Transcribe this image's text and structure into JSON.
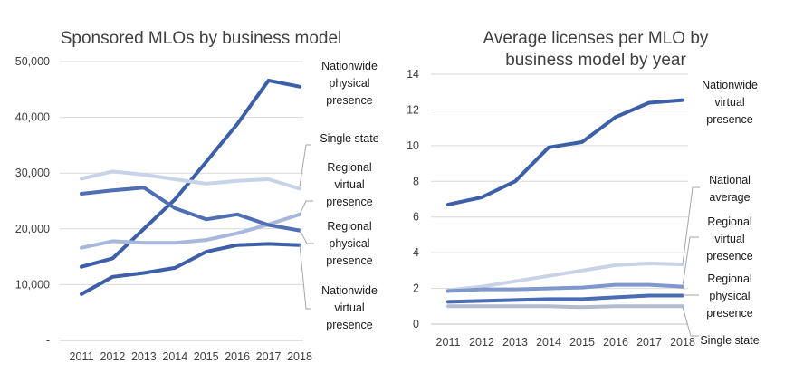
{
  "chart_data": [
    {
      "type": "line",
      "title": "Sponsored MLOs by business model",
      "x": [
        "2011",
        "2012",
        "2013",
        "2014",
        "2015",
        "2016",
        "2017",
        "2018"
      ],
      "ylim": [
        0,
        50000
      ],
      "yticks": [
        "-",
        "10,000",
        "20,000",
        "30,000",
        "40,000",
        "50,000"
      ],
      "grid": true,
      "series": [
        {
          "name": "Nationwide physical presence",
          "color": "#3b5fa8",
          "values": [
            13200,
            14700,
            20000,
            25300,
            32000,
            38800,
            46600,
            45500
          ]
        },
        {
          "name": "Single state",
          "color": "#c9d3e8",
          "values": [
            29000,
            30300,
            29700,
            28900,
            28100,
            28600,
            28900,
            27200
          ]
        },
        {
          "name": "Regional virtual presence",
          "color": "#a7b8dc",
          "values": [
            16600,
            17800,
            17500,
            17500,
            18000,
            19200,
            20800,
            22600
          ]
        },
        {
          "name": "Regional physical presence",
          "color": "#4e6fb4",
          "values": [
            26300,
            26900,
            27400,
            23700,
            21700,
            22600,
            20700,
            19700
          ]
        },
        {
          "name": "Nationwide virtual presence",
          "color": "#3d5fa8",
          "values": [
            8300,
            11400,
            12100,
            13000,
            15900,
            17100,
            17300,
            17100
          ]
        }
      ]
    },
    {
      "type": "line",
      "title": "Average licenses per MLO by business model by year",
      "title_lines": [
        "Average licenses per MLO by",
        "business model by year"
      ],
      "x": [
        "2011",
        "2012",
        "2013",
        "2014",
        "2015",
        "2016",
        "2017",
        "2018"
      ],
      "ylim": [
        0,
        14
      ],
      "yticks": [
        "0",
        "2",
        "4",
        "6",
        "8",
        "10",
        "12",
        "14"
      ],
      "grid": true,
      "series": [
        {
          "name": "Nationwide virtual presence",
          "color": "#3b5fa8",
          "values": [
            6.7,
            7.1,
            8.0,
            9.9,
            10.2,
            11.6,
            12.4,
            12.55
          ]
        },
        {
          "name": "National average",
          "color": "#c9d3e8",
          "values": [
            1.9,
            2.1,
            2.4,
            2.7,
            3.0,
            3.3,
            3.4,
            3.35
          ]
        },
        {
          "name": "Regional virtual presence",
          "color": "#7e97cd",
          "values": [
            1.85,
            1.95,
            1.95,
            2.0,
            2.05,
            2.2,
            2.2,
            2.1
          ]
        },
        {
          "name": "Regional physical presence",
          "color": "#4a6cb3",
          "values": [
            1.25,
            1.3,
            1.35,
            1.4,
            1.4,
            1.5,
            1.6,
            1.6
          ]
        },
        {
          "name": "Single state",
          "color": "#b3bcce",
          "values": [
            1.0,
            1.0,
            1.0,
            1.0,
            0.95,
            1.0,
            1.0,
            1.0
          ]
        }
      ]
    }
  ],
  "labels": [
    {
      "lines": [
        "Nationwide",
        "physical",
        "presence"
      ]
    },
    {
      "lines": [
        "Single state"
      ]
    },
    {
      "lines": [
        "Regional",
        "virtual",
        "presence"
      ]
    },
    {
      "lines": [
        "Regional",
        "physical",
        "presence"
      ]
    },
    {
      "lines": [
        "Nationwide",
        "virtual",
        "presence"
      ]
    },
    {
      "lines": [
        "Nationwide",
        "virtual",
        "presence"
      ]
    },
    {
      "lines": [
        "National",
        "average"
      ]
    },
    {
      "lines": [
        "Regional",
        "virtual",
        "presence"
      ]
    },
    {
      "lines": [
        "Regional",
        "physical",
        "presence"
      ]
    },
    {
      "lines": [
        "Single state"
      ]
    }
  ]
}
